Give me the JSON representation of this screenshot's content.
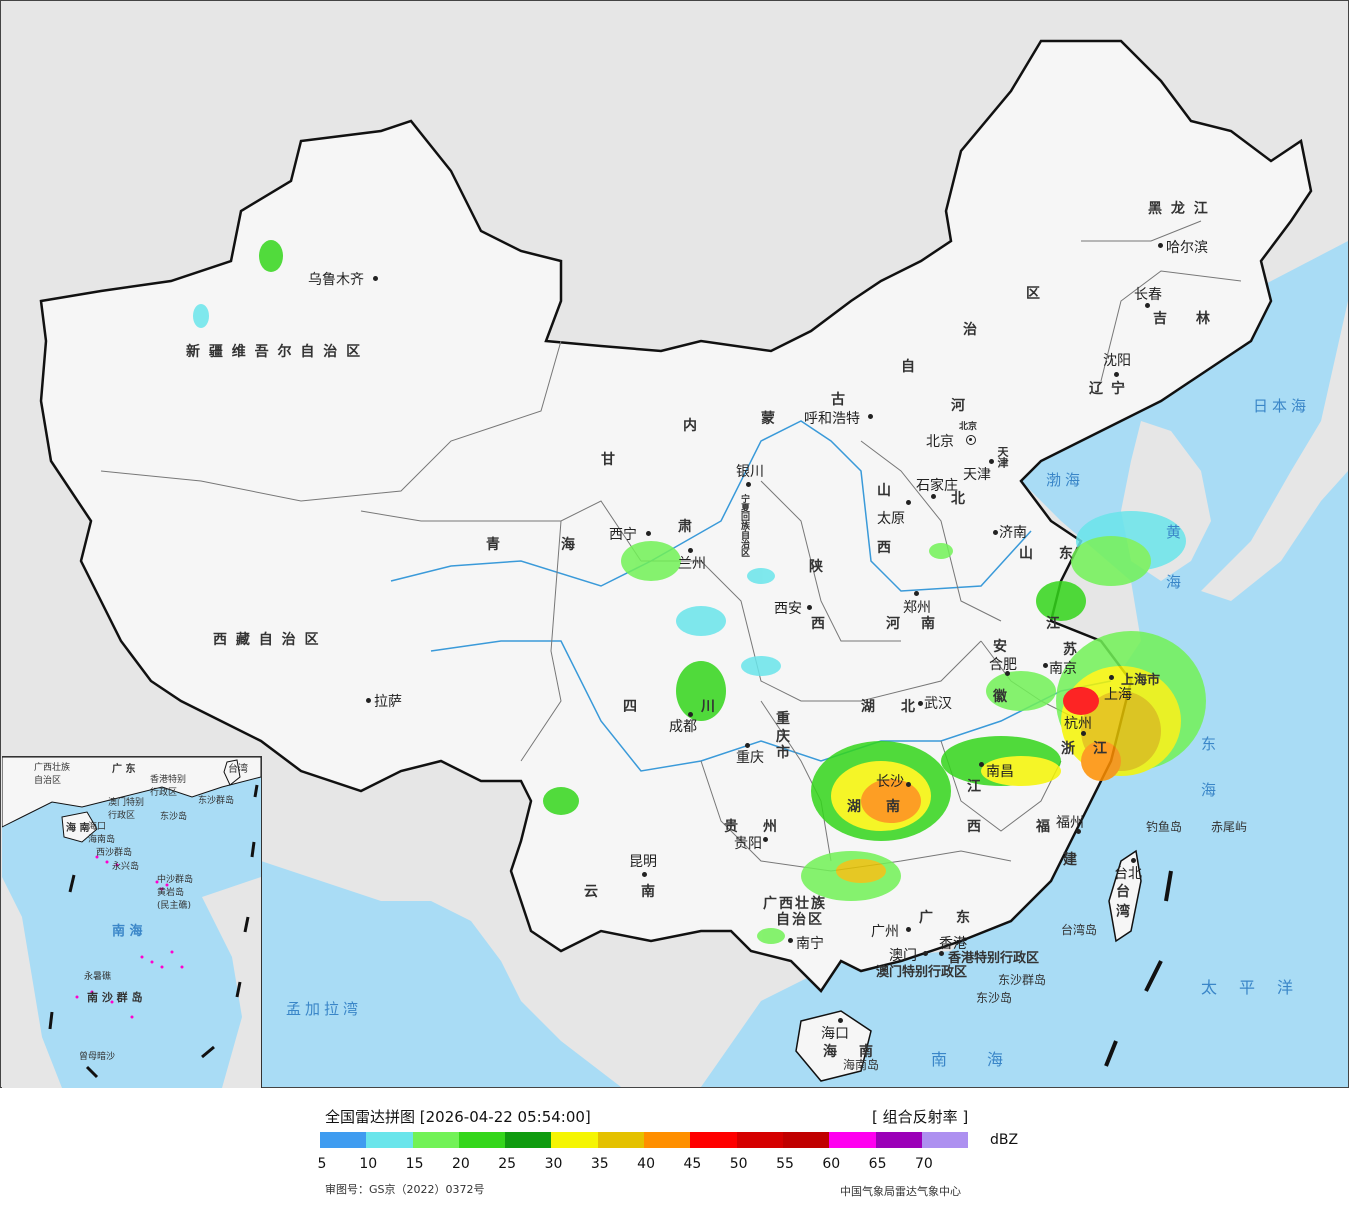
{
  "colors": {
    "sea": "#a9dcf5",
    "land_china": "#f6f6f6",
    "land_other": "#e6e6e6",
    "border": "#111111",
    "river": "#3a9ad9"
  },
  "map": {
    "cities": [
      {
        "name": "乌鲁木齐"
      },
      {
        "name": "拉萨"
      },
      {
        "name": "西宁"
      },
      {
        "name": "兰州"
      },
      {
        "name": "银川"
      },
      {
        "name": "呼和浩特"
      },
      {
        "name": "北京"
      },
      {
        "name": "天津"
      },
      {
        "name": "石家庄"
      },
      {
        "name": "太原"
      },
      {
        "name": "济南"
      },
      {
        "name": "西安"
      },
      {
        "name": "郑州"
      },
      {
        "name": "合肥"
      },
      {
        "name": "南京"
      },
      {
        "name": "上海"
      },
      {
        "name": "杭州"
      },
      {
        "name": "武汉"
      },
      {
        "name": "成都"
      },
      {
        "name": "重庆"
      },
      {
        "name": "贵阳"
      },
      {
        "name": "昆明"
      },
      {
        "name": "南宁"
      },
      {
        "name": "广州"
      },
      {
        "name": "澳门"
      },
      {
        "name": "香港"
      },
      {
        "name": "海口"
      },
      {
        "name": "福州"
      },
      {
        "name": "南昌"
      },
      {
        "name": "长沙"
      },
      {
        "name": "沈阳"
      },
      {
        "name": "长春"
      },
      {
        "name": "哈尔滨"
      },
      {
        "name": "台北"
      }
    ],
    "provinces": {
      "xinjiang": "新 疆 维 吾 尔 自 治 区",
      "tibet": "西 藏 自 治 区",
      "qinghai_1": "青",
      "qinghai_2": "海",
      "gansu_1": "甘",
      "gansu_2": "肃",
      "neimenggu_1": "内",
      "neimenggu_2": "蒙",
      "neimenggu_3": "古",
      "neimenggu_4": "自",
      "neimenggu_5": "治",
      "neimenggu_6": "区",
      "ningxia": "宁夏回族自治区",
      "sichuan_1": "四",
      "sichuan_2": "川",
      "yunnan_1": "云",
      "yunnan_2": "南",
      "guizhou_1": "贵",
      "guizhou_2": "州",
      "guangxi_1": "广西壮族",
      "guangxi_2": "自治区",
      "guangdong_1": "广",
      "guangdong_2": "东",
      "hainan_1": "海",
      "hainan_2": "南",
      "shaanxi_1": "陕",
      "shaanxi_2": "西",
      "shanxi_1": "山",
      "shanxi_2": "西",
      "hebei_1": "河",
      "hebei_2": "北",
      "henan_1": "河",
      "henan_2": "南",
      "hubei_1": "湖",
      "hubei_2": "北",
      "hunan_1": "湖",
      "hunan_2": "南",
      "jiangxi_1": "江",
      "jiangxi_2": "西",
      "anhui_1": "安",
      "anhui_2": "徽",
      "jiangsu_1": "江",
      "jiangsu_2": "苏",
      "zhejiang_1": "浙",
      "zhejiang_2": "江",
      "fujian_1": "福",
      "fujian_2": "建",
      "shandong_1": "山",
      "shandong_2": "东",
      "liaoning_1": "辽",
      "liaoning_2": "宁",
      "jilin_1": "吉",
      "jilin_2": "林",
      "heilongjiang": "黑 龙 江",
      "taiwan_1": "台",
      "taiwan_2": "湾",
      "chongqing_1": "重",
      "chongqing_2": "庆",
      "chongqing_3": "市",
      "shanghai": "上海市",
      "beijing_s": "北京",
      "tianjin_s": "天津",
      "hk": "香港特别行政区",
      "macau": "澳门特别行政区",
      "hainan_island": "海南岛"
    },
    "seas": {
      "japan_sea": "日本海",
      "bohai": "渤海",
      "huanghai_1": "黄",
      "huanghai_2": "海",
      "donghai_1": "东",
      "donghai_2": "海",
      "nanhai": "南海",
      "pacific": "太平洋",
      "bengal": "孟加拉湾"
    },
    "islands": {
      "diaoyu": "钓鱼岛",
      "chiwei": "赤尾屿",
      "taiwan_island": "台湾岛",
      "dongsha_qundao": "东沙群岛",
      "dongsha_dao": "东沙岛"
    }
  },
  "inset": {
    "labels": {
      "guangdong": "广 东",
      "taiwan": "台湾",
      "guangxi": "广西壮族\n自治区",
      "hk": "香港特别\n行政区",
      "macau": "澳门特别\n行政区",
      "dongsha": "东沙群岛",
      "dongsha_dao": "东沙岛",
      "hainan": "海 南",
      "haikou": "海口",
      "hainan_island": "海南岛",
      "xisha": "西沙群岛",
      "yongxing": "永兴岛",
      "zhongsha": "中沙群岛",
      "huangyan": "黄岩岛\n(民主礁)",
      "nanhai": "南 海",
      "nansha": "南 沙 群 岛",
      "yongshu": "永暑礁",
      "zengmu": "曾母暗沙"
    }
  },
  "legend": {
    "title": "全国雷达拼图 [2026-04-22 05:54:00]",
    "product": "[ 组合反射率 ]",
    "unit": "dBZ",
    "ticks": [
      "5",
      "10",
      "15",
      "20",
      "25",
      "30",
      "35",
      "40",
      "45",
      "50",
      "55",
      "60",
      "65",
      "70"
    ],
    "colors": [
      "#3f9cf0",
      "#6ae5eb",
      "#72f257",
      "#34d61b",
      "#0f9b0f",
      "#f5f503",
      "#e4c100",
      "#ff8f00",
      "#ff0000",
      "#d50000",
      "#c00000",
      "#ff00f0",
      "#9b00b8",
      "#ad90f0"
    ],
    "approval": "审图号：GS京（2022）0372号",
    "producer": "中国气象局雷达气象中心"
  }
}
